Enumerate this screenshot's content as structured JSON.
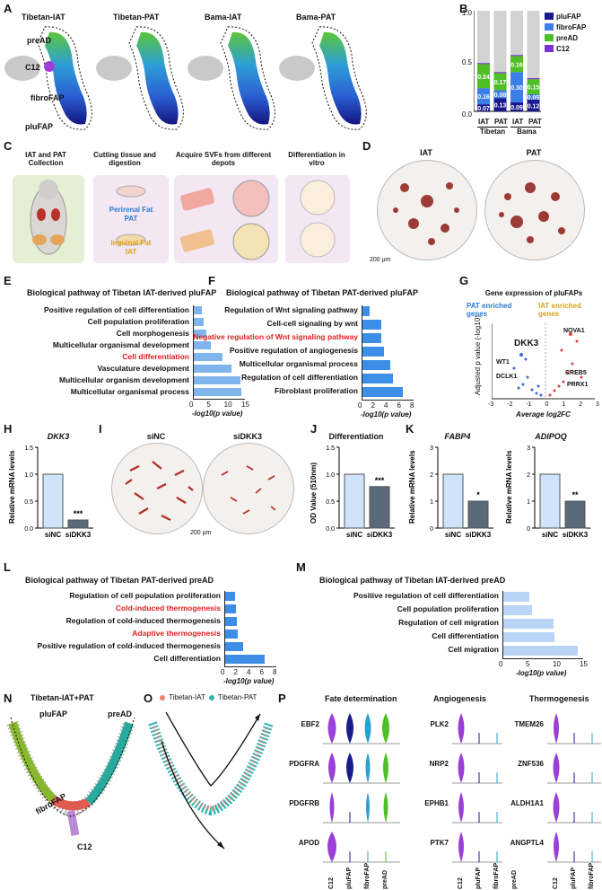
{
  "panelA": {
    "label": "A",
    "titles": [
      "Tibetan-IAT",
      "Tibetan-PAT",
      "Bama-IAT",
      "Bama-PAT"
    ],
    "clusters": [
      "preAD",
      "C12",
      "fibroFAP",
      "pluFAP"
    ]
  },
  "panelB": {
    "label": "B",
    "legend": [
      {
        "name": "pluFAP",
        "color": "#1a1a8c"
      },
      {
        "name": "fibroFAP",
        "color": "#3b7ee8"
      },
      {
        "name": "preAD",
        "color": "#4fbf26"
      },
      {
        "name": "C12",
        "color": "#7a2fd1"
      }
    ],
    "yticks": [
      "0.0",
      "0.5",
      "1.0"
    ],
    "groups": [
      "Tibetan",
      "Bama"
    ],
    "categories": [
      "IAT",
      "PAT",
      "IAT",
      "PAT"
    ]
  },
  "chart_data": [
    {
      "type": "bar",
      "title": "",
      "stacked": true,
      "categories": [
        "Tibetan IAT",
        "Tibetan PAT",
        "Bama IAT",
        "Bama PAT"
      ],
      "series": [
        {
          "name": "pluFAP",
          "values": [
            0.07,
            0.13,
            0.09,
            0.12
          ]
        },
        {
          "name": "fibroFAP",
          "values": [
            0.16,
            0.08,
            0.3,
            0.05
          ]
        },
        {
          "name": "preAD",
          "values": [
            0.24,
            0.17,
            0.16,
            0.15
          ]
        },
        {
          "name": "C12",
          "values": [
            0.01,
            0.01,
            0.01,
            0.01
          ]
        }
      ],
      "labels": [
        [
          "0.07",
          "0.16",
          "0.24"
        ],
        [
          "0.13",
          "0.08",
          "0.17"
        ],
        [
          "0.09",
          "0.30",
          "0.16"
        ],
        [
          "0.12",
          "0.05",
          "0.15"
        ]
      ],
      "ylim": [
        0,
        1.0
      ]
    },
    {
      "type": "bar",
      "orientation": "horizontal",
      "title": "Biological pathway of Tibetan  IAT-derived pluFAP",
      "categories": [
        "Positive regulation of cell differentiation",
        "Cell population proliferation",
        "Cell morphogenesis",
        "Multicellular organismal development",
        "Cell differentiation",
        "Vasculature development",
        "Multicellular organism development",
        "Multicellular organismal process"
      ],
      "values": [
        2.5,
        3.2,
        4.0,
        5.3,
        8.5,
        11.0,
        13.6,
        14.0
      ],
      "xlabel": "-log10(p value)",
      "xticks": [
        "0",
        "5",
        "10",
        "15"
      ],
      "xlim": [
        0,
        15
      ]
    },
    {
      "type": "bar",
      "orientation": "horizontal",
      "title": "Biological pathway of Tibetan PAT-derived pluFAP",
      "categories": [
        "Regulation of Wnt signaling pathway",
        "Cell-cell signaling by wnt",
        "Negative regulation of Wnt signaling pathway",
        "Positive regulation of angiogenesis",
        "Multicellular organismal process",
        "Regulation of cell differentiation",
        "Fibroblast proliferation"
      ],
      "values": [
        1.2,
        3.0,
        3.1,
        3.5,
        4.4,
        4.8,
        6.3
      ],
      "xlabel": "-log10(p value)",
      "xticks": [
        "0",
        "2",
        "4",
        "6",
        "8"
      ],
      "xlim": [
        0,
        8
      ]
    },
    {
      "type": "bar",
      "orientation": "horizontal",
      "title": "Biological pathway of Tibetan PAT-derived preAD",
      "categories": [
        "Regulation of cell population proliferation",
        "Cold-induced thermogenesis",
        "Regulation of cold-induced thermogenesis",
        "Adaptive thermogenesis",
        "Positive regulation of cold-induced thermogenesis",
        "Cell differentiation"
      ],
      "values": [
        1.6,
        1.8,
        1.9,
        2.1,
        2.9,
        6.2
      ],
      "xlabel": "-log10(p value)",
      "xticks": [
        "0",
        "2",
        "4",
        "6",
        "8"
      ],
      "xlim": [
        0,
        8
      ]
    },
    {
      "type": "bar",
      "orientation": "horizontal",
      "title": "Biological pathway of Tibetan IAT-derived preAD",
      "categories": [
        "Positive regulation of cell differentiation",
        "Cell population proliferation",
        "Regulation of cell migration",
        "Cell differentiation",
        "Cell migration"
      ],
      "values": [
        5.0,
        5.5,
        9.5,
        9.6,
        14.0
      ],
      "xlabel": "-log10(p value)",
      "xticks": [
        "0",
        "5",
        "10",
        "15"
      ],
      "xlim": [
        0,
        15
      ]
    },
    {
      "type": "bar",
      "title": "DKK3",
      "categories": [
        "siNC",
        "siDKK3"
      ],
      "values": [
        1.0,
        0.15
      ],
      "ylabel": "Relative mRNA levels",
      "yticks": [
        "0.0",
        "0.5",
        "1.0",
        "1.5"
      ],
      "ylim": [
        0,
        1.5
      ]
    },
    {
      "type": "bar",
      "title": "Differentiation",
      "categories": [
        "siNC",
        "siDKK3"
      ],
      "values": [
        1.0,
        0.77
      ],
      "ylabel": "OD Value (510nm)",
      "yticks": [
        "0.0",
        "0.5",
        "1.0",
        "1.5"
      ],
      "ylim": [
        0,
        1.5
      ]
    },
    {
      "type": "bar",
      "title": "FABP4",
      "categories": [
        "siNC",
        "siDKK3"
      ],
      "values": [
        2.0,
        1.0
      ],
      "ylabel": "Relative mRNA levels",
      "yticks": [
        "0",
        "1",
        "2",
        "3"
      ],
      "ylim": [
        0,
        3
      ]
    },
    {
      "type": "bar",
      "title": "ADIPOQ",
      "categories": [
        "siNC",
        "siDKK3"
      ],
      "values": [
        2.0,
        1.0
      ],
      "ylabel": "Relative mRNA levels",
      "yticks": [
        "0",
        "1",
        "2",
        "3"
      ],
      "ylim": [
        0,
        3
      ]
    }
  ],
  "panelC": {
    "label": "C",
    "steps": [
      "IAT and PAT Collection",
      "Cutting tissue and digestion",
      "Acquire SVFs from different depots",
      "Differentiation in vitro"
    ],
    "perirenal": "Perirenal Fat",
    "pat": "PAT",
    "inguinal": "Inguinal Fat",
    "iat": "IAT"
  },
  "panelD": {
    "label": "D",
    "titles": [
      "IAT",
      "PAT"
    ],
    "scale": "200 μm"
  },
  "panelE": {
    "label": "E",
    "xlabel": "-log10(p value)"
  },
  "panelF": {
    "label": "F",
    "xlabel": "-log10(p value)"
  },
  "panelG": {
    "label": "G",
    "title": "Gene expression of pluFAPs",
    "left_label": "PAT enriched genes",
    "right_label": "IAT enriched genes",
    "ylabel": "Adjusted p value (-log10)",
    "xlabel": "Average log2FC",
    "genes": [
      "DKK3",
      "WT1",
      "DCLK1",
      "NOVA1",
      "CREB5",
      "PRRX1"
    ],
    "xticks": [
      "-3",
      "-2",
      "-1",
      "0",
      "1",
      "2",
      "3"
    ]
  },
  "panelH": {
    "label": "H",
    "title": "DKK3",
    "sig": "***"
  },
  "panelI": {
    "label": "I",
    "titles": [
      "siNC",
      "siDKK3"
    ],
    "scale": "200 μm"
  },
  "panelJ": {
    "label": "J",
    "sig": "***"
  },
  "panelK": {
    "label": "K",
    "sig1": "*",
    "sig2": "**"
  },
  "panelL": {
    "label": "L"
  },
  "panelM": {
    "label": "M"
  },
  "panelN": {
    "label": "N",
    "title": "Tibetan-IAT+PAT",
    "clusters": [
      "pluFAP",
      "preAD",
      "fibroFAP",
      "C12"
    ]
  },
  "panelO": {
    "label": "O",
    "legend": [
      "Tibetan-IAT",
      "Tibetan-PAT"
    ]
  },
  "panelP": {
    "label": "P",
    "groups": [
      "Fate determination",
      "Angiogenesis",
      "Thermogenesis"
    ],
    "genes1": [
      "EBF2",
      "PDGFRA",
      "PDGFRB",
      "APOD"
    ],
    "genes2": [
      "PLK2",
      "NRP2",
      "EPHB1",
      "PTK7"
    ],
    "genes3": [
      "TMEM26",
      "ZNF536",
      "ALDH1A1",
      "ANGPTL4"
    ],
    "xcats": [
      "C12",
      "pluFAP",
      "fibroFAP",
      "preAD"
    ]
  }
}
